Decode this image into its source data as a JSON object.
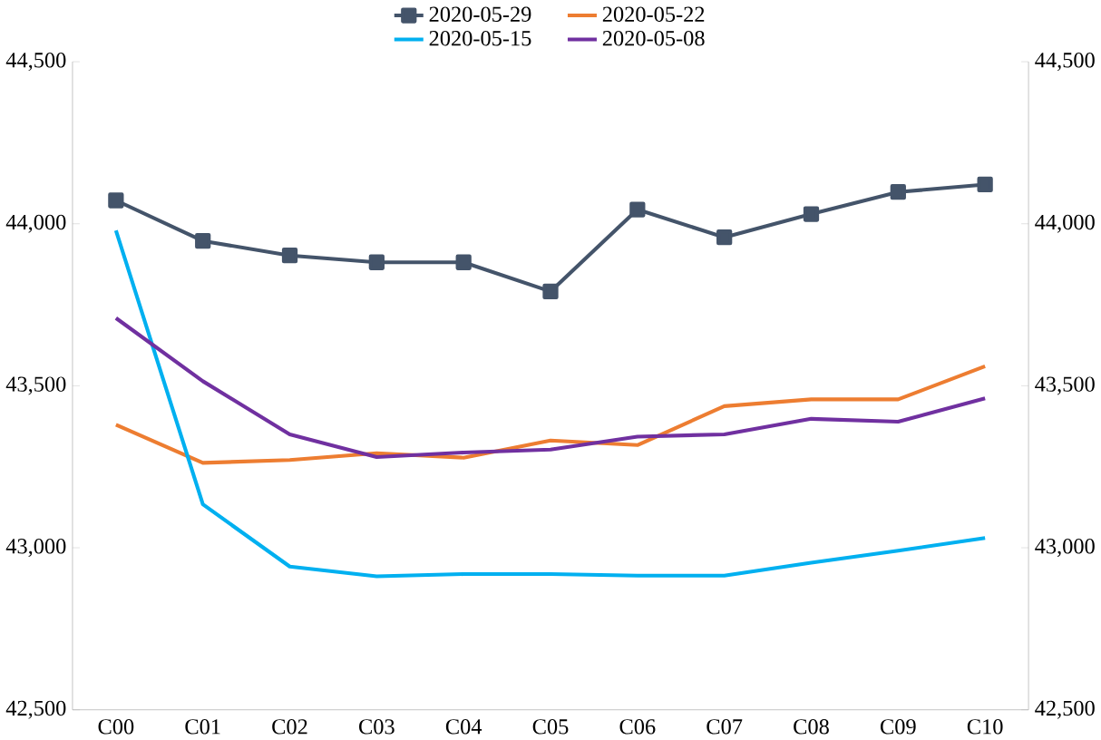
{
  "chart_data": {
    "type": "line",
    "categories": [
      "C00",
      "C01",
      "C02",
      "C03",
      "C04",
      "C05",
      "C06",
      "C07",
      "C08",
      "C09",
      "C10"
    ],
    "series": [
      {
        "name": "2020-05-29",
        "color": "#44546a",
        "marker": "square",
        "values": [
          44072,
          43947,
          43902,
          43881,
          43881,
          43791,
          44044,
          43958,
          44030,
          44098,
          44121
        ]
      },
      {
        "name": "2020-05-22",
        "color": "#ed7d31",
        "marker": "none",
        "values": [
          43380,
          43262,
          43271,
          43292,
          43278,
          43331,
          43317,
          43437,
          43458,
          43458,
          43560
        ]
      },
      {
        "name": "2020-05-15",
        "color": "#00b0f0",
        "marker": "none",
        "values": [
          43979,
          43134,
          42942,
          42912,
          42919,
          42919,
          42914,
          42914,
          42954,
          42991,
          43030
        ]
      },
      {
        "name": "2020-05-08",
        "color": "#7030a0",
        "marker": "none",
        "values": [
          43709,
          43514,
          43350,
          43280,
          43294,
          43303,
          43343,
          43350,
          43398,
          43389,
          43461
        ]
      }
    ],
    "ylim": [
      42500,
      44500
    ],
    "yticks": [
      {
        "value": 42500,
        "label": "42,500"
      },
      {
        "value": 43000,
        "label": "43,000"
      },
      {
        "value": 43500,
        "label": "43,500"
      },
      {
        "value": 44000,
        "label": "44,000"
      },
      {
        "value": 44500,
        "label": "44,500"
      }
    ],
    "y2lim": [
      42500,
      44500
    ],
    "y2ticks": [
      {
        "value": 42500,
        "label": "42,500"
      },
      {
        "value": 43000,
        "label": "43,000"
      },
      {
        "value": 43500,
        "label": "43,500"
      },
      {
        "value": 44000,
        "label": "44,000"
      },
      {
        "value": 44500,
        "label": "44,500"
      }
    ],
    "grid": false,
    "legend": "top",
    "line_style": "solid"
  }
}
